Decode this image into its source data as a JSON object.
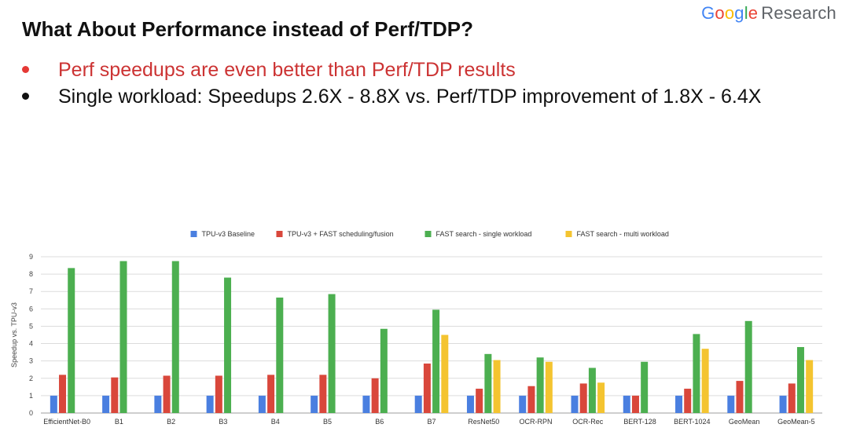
{
  "brand": {
    "google_letters": [
      {
        "ch": "G",
        "color": "#4285F4"
      },
      {
        "ch": "o",
        "color": "#EA4335"
      },
      {
        "ch": "o",
        "color": "#FBBC05"
      },
      {
        "ch": "g",
        "color": "#4285F4"
      },
      {
        "ch": "l",
        "color": "#34A853"
      },
      {
        "ch": "e",
        "color": "#EA4335"
      }
    ],
    "research": "Research"
  },
  "slide": {
    "title": "What About Performance instead of Perf/TDP?",
    "bullets": [
      {
        "text": "Perf speedups are even better than Perf/TDP results",
        "color": "#cc3333",
        "dot_color": "#e53935"
      },
      {
        "text": "Single workload: Speedups 2.6X - 8.8X vs. Perf/TDP improvement of 1.8X - 6.4X",
        "color": "#111111",
        "dot_color": "#111111"
      }
    ]
  },
  "chart_data": {
    "type": "bar",
    "title": "",
    "xlabel": "",
    "ylabel": "Speedup vs. TPU-v3",
    "ylim": [
      0,
      9
    ],
    "yticks": [
      0,
      1,
      2,
      3,
      4,
      5,
      6,
      7,
      8,
      9
    ],
    "grid": true,
    "legend_position": "top",
    "categories": [
      "EfficientNet-B0",
      "B1",
      "B2",
      "B3",
      "B4",
      "B5",
      "B6",
      "B7",
      "ResNet50",
      "OCR-RPN",
      "OCR-Rec",
      "BERT-128",
      "BERT-1024",
      "GeoMean",
      "GeoMean-5"
    ],
    "series": [
      {
        "name": "TPU-v3 Baseline",
        "color": "#4a7fe0",
        "values": [
          1,
          1,
          1,
          1,
          1,
          1,
          1,
          1,
          1,
          1,
          1,
          1,
          1,
          1,
          1
        ]
      },
      {
        "name": "TPU-v3 + FAST scheduling/fusion",
        "color": "#d9473b",
        "values": [
          2.2,
          2.05,
          2.15,
          2.15,
          2.2,
          2.2,
          2.0,
          2.85,
          1.4,
          1.55,
          1.7,
          1.0,
          1.4,
          1.85,
          1.7
        ]
      },
      {
        "name": "FAST search - single workload",
        "color": "#4caf50",
        "values": [
          8.35,
          8.75,
          8.75,
          7.8,
          6.65,
          6.85,
          4.85,
          5.95,
          3.4,
          3.2,
          2.6,
          2.95,
          4.55,
          5.3,
          3.8
        ]
      },
      {
        "name": "FAST search - multi workload",
        "color": "#f4c430",
        "values": [
          null,
          null,
          null,
          null,
          null,
          null,
          null,
          4.5,
          3.05,
          2.95,
          1.75,
          null,
          3.7,
          null,
          3.05
        ]
      }
    ]
  }
}
